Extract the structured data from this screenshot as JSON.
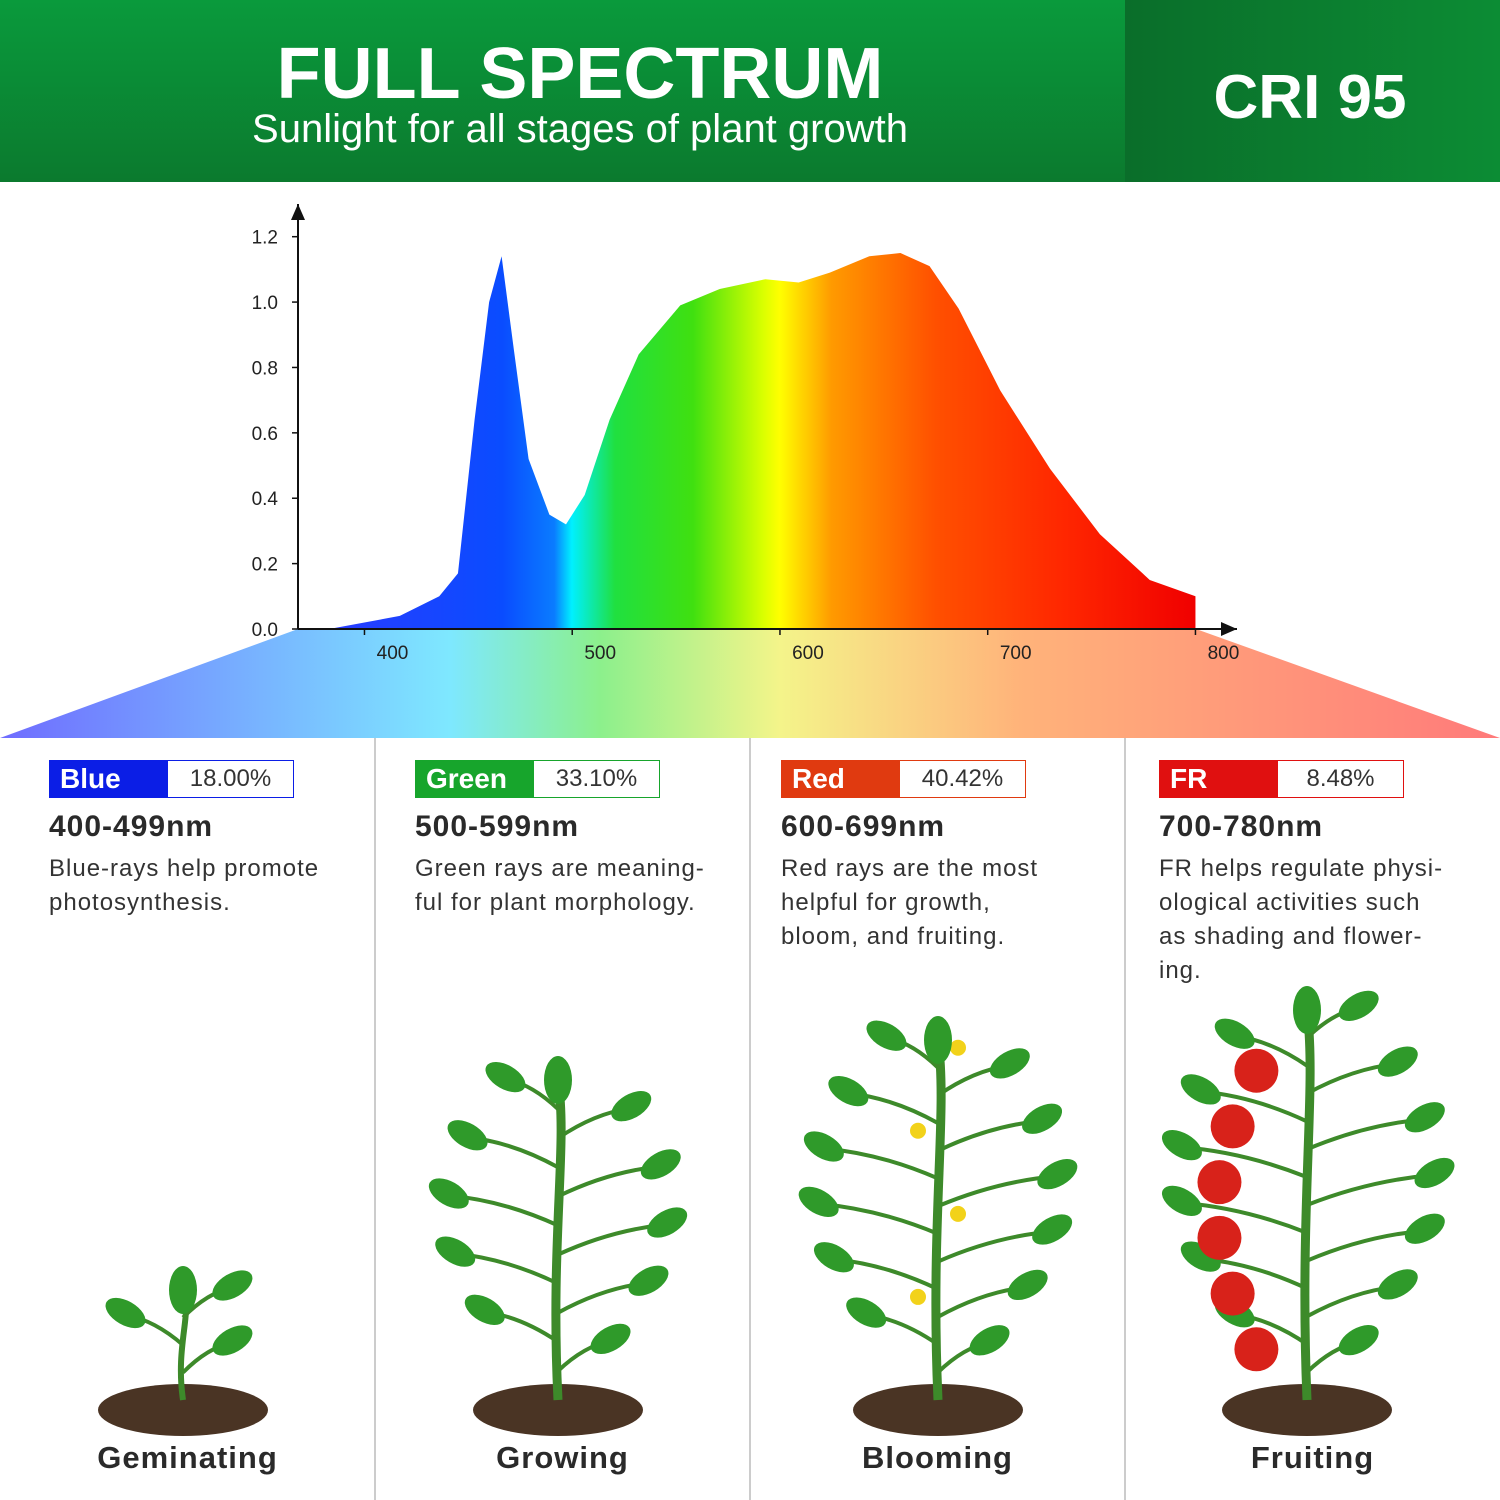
{
  "header": {
    "title": "FULL SPECTRUM",
    "subtitle": "Sunlight for all stages of plant growth",
    "badge": "CRI 95"
  },
  "chart_data": {
    "type": "area",
    "x": [
      383,
      417,
      436,
      445,
      453,
      460,
      466,
      472,
      479,
      489,
      497,
      506,
      518,
      532,
      552,
      571,
      593,
      609,
      624,
      643,
      658,
      672,
      686,
      706,
      730,
      754,
      778,
      800,
      800
    ],
    "values": [
      0,
      0.04,
      0.1,
      0.17,
      0.64,
      1.0,
      1.14,
      0.85,
      0.52,
      0.35,
      0.32,
      0.41,
      0.64,
      0.84,
      0.99,
      1.04,
      1.07,
      1.06,
      1.09,
      1.14,
      1.15,
      1.11,
      0.98,
      0.73,
      0.49,
      0.29,
      0.15,
      0.1,
      0
    ],
    "xlim": [
      368,
      820
    ],
    "ylim": [
      0,
      1.3
    ],
    "xticks": [
      400,
      500,
      600,
      700,
      800
    ],
    "yticks": [
      {
        "value": 0,
        "label": "0.0"
      },
      {
        "value": 0.2,
        "label": "0.2"
      },
      {
        "value": 0.4,
        "label": "0.4"
      },
      {
        "value": 0.6,
        "label": "0.6"
      },
      {
        "value": 0.8,
        "label": "0.8"
      },
      {
        "value": 1.0,
        "label": "1.0"
      },
      {
        "value": 1.2,
        "label": "1.2"
      }
    ]
  },
  "bands": [
    {
      "name": "Blue",
      "percent": "18.00%",
      "range": "400-499nm",
      "color": "#0b1ee6",
      "description": [
        "Blue-rays help promote",
        "photosynthesis."
      ]
    },
    {
      "name": "Green",
      "percent": "33.10%",
      "range": "500-599nm",
      "color": "#17a52c",
      "description": [
        "Green rays are meaning-",
        "ful for plant morphology."
      ]
    },
    {
      "name": "Red",
      "percent": "40.42%",
      "range": "600-699nm",
      "color": "#e03a10",
      "description": [
        "Red rays are the most",
        "helpful for growth,",
        "bloom, and fruiting."
      ]
    },
    {
      "name": "FR",
      "percent": "8.48%",
      "range": "700-780nm",
      "color": "#e01010",
      "description": [
        "FR helps regulate physi-",
        "ological activities such",
        "as shading and flower-",
        "ing."
      ]
    }
  ],
  "stages": [
    "Geminating",
    "Growing",
    "Blooming",
    "Fruiting"
  ]
}
